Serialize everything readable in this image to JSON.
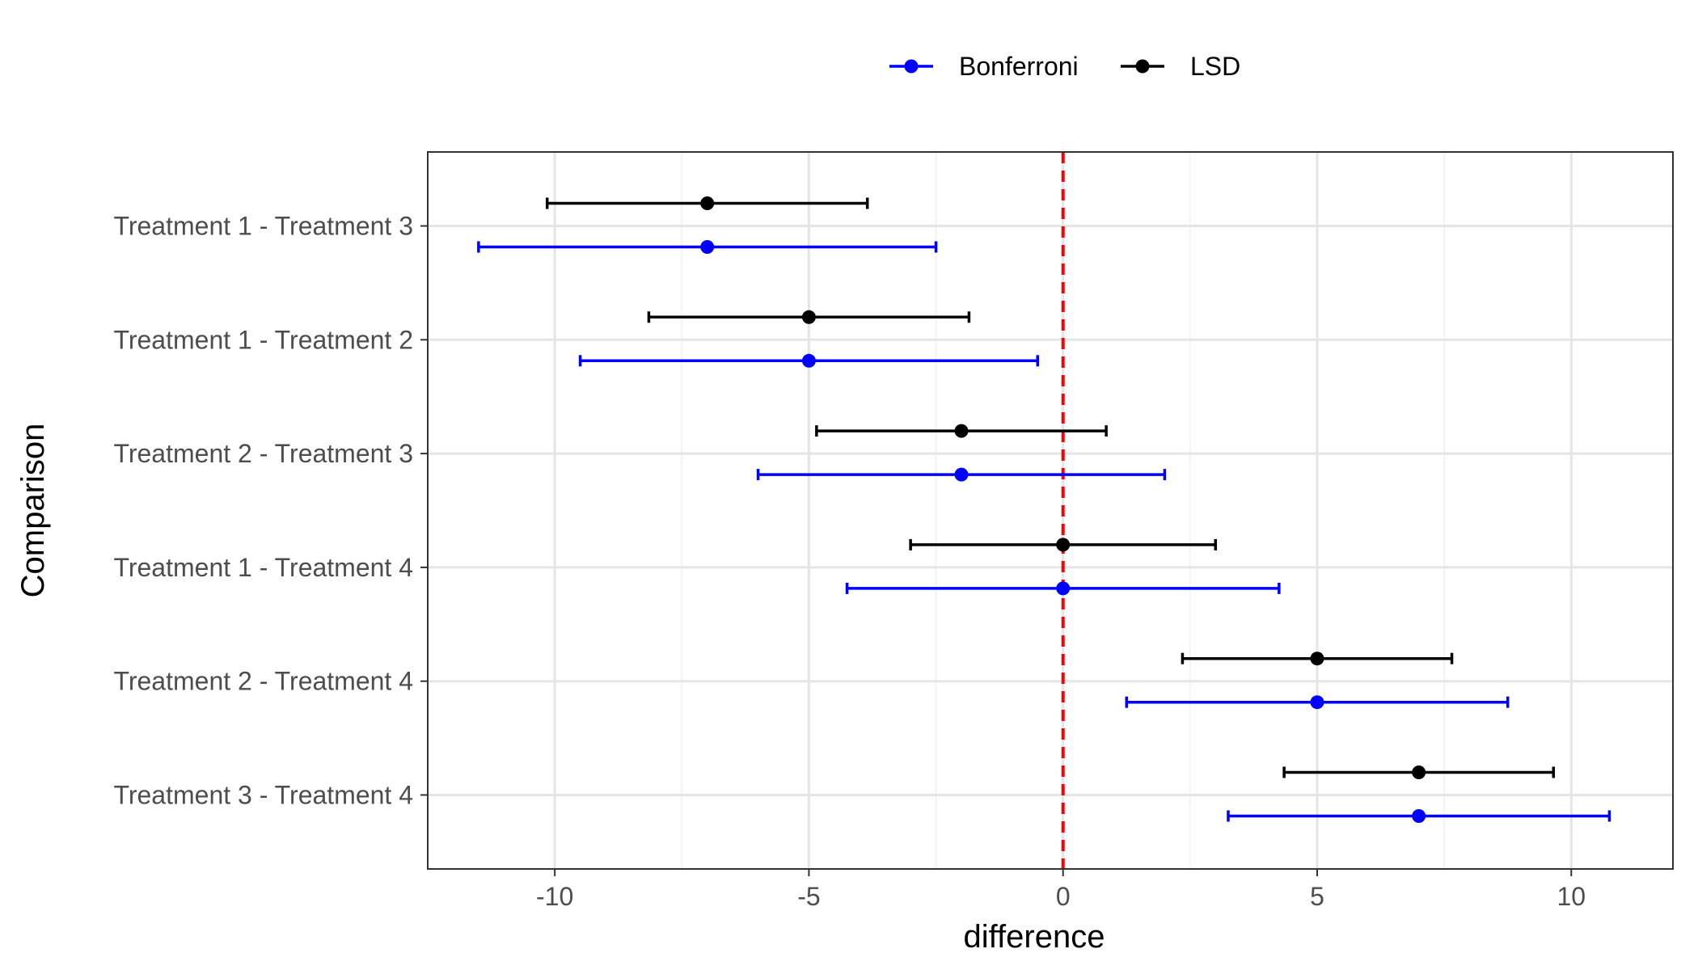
{
  "chart_data": {
    "type": "errorbar",
    "xlabel": "difference",
    "ylabel": "Comparison",
    "xlim": [
      -12.5,
      12
    ],
    "x_ticks": [
      -10,
      -5,
      0,
      5,
      10
    ],
    "x_tick_labels": [
      "-10",
      "-5",
      "0",
      "5",
      "10"
    ],
    "categories": [
      "Treatment 1 - Treatment 3",
      "Treatment 1 - Treatment 2",
      "Treatment 2 - Treatment 3",
      "Treatment 1 - Treatment 4",
      "Treatment 2 - Treatment 4",
      "Treatment 3 - Treatment 4"
    ],
    "reference_line": {
      "x": 0,
      "color": "#ff0000",
      "style": "dashed"
    },
    "grid": true,
    "legend_position": "top",
    "series": [
      {
        "name": "Bonferroni",
        "color": "#0000ff",
        "estimate": [
          -7,
          -5,
          -2,
          0,
          5,
          7
        ],
        "lower": [
          -11.5,
          -9.5,
          -6,
          -4.25,
          1.25,
          3.25
        ],
        "upper": [
          -2.5,
          -0.5,
          2,
          4.25,
          8.75,
          10.75
        ]
      },
      {
        "name": "LSD",
        "color": "#000000",
        "estimate": [
          -7,
          -5,
          -2,
          0,
          5,
          7
        ],
        "lower": [
          -10.15,
          -8.15,
          -4.85,
          -3.0,
          2.35,
          4.35
        ],
        "upper": [
          -3.85,
          -1.85,
          0.85,
          3.0,
          7.65,
          9.65
        ]
      }
    ]
  }
}
